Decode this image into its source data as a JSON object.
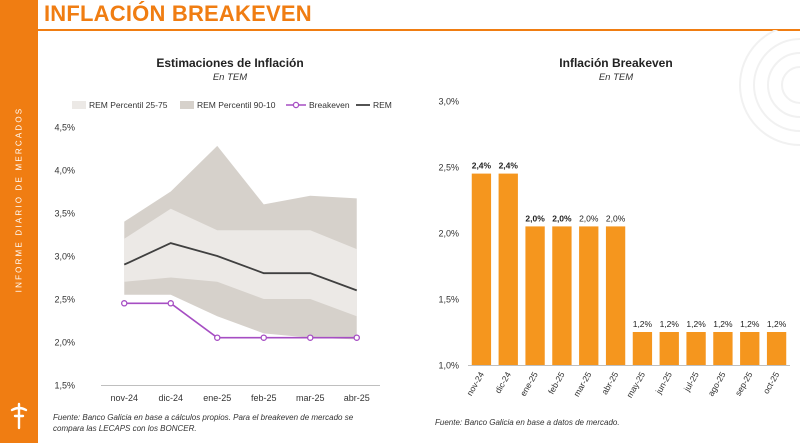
{
  "page": {
    "title": "INFLACIÓN BREAKEVEN",
    "sidebar_text": "INFORME DIARIO DE MERCADOS",
    "accent_color": "#f07d12",
    "logo_icon": "dagger-icon"
  },
  "chart_data": [
    {
      "type": "area",
      "title": "Estimaciones de Inflación",
      "subtitle": "En TEM",
      "categories": [
        "nov-24",
        "dic-24",
        "ene-25",
        "feb-25",
        "mar-25",
        "abr-25"
      ],
      "ylim": [
        1.5,
        4.5
      ],
      "yticks": [
        "1,5%",
        "2,0%",
        "2,5%",
        "3,0%",
        "3,5%",
        "4,0%",
        "4,5%"
      ],
      "ytick_values": [
        1.5,
        2.0,
        2.5,
        3.0,
        3.5,
        4.0,
        4.5
      ],
      "series": [
        {
          "name": "REM Percentil 90-10",
          "kind": "band",
          "color": "#d6d1cb",
          "upper": [
            3.4,
            3.75,
            4.28,
            3.6,
            3.7,
            3.67
          ],
          "lower": [
            2.55,
            2.55,
            2.3,
            2.1,
            2.05,
            2.03
          ]
        },
        {
          "name": "REM Percentil 25-75",
          "kind": "band",
          "color": "#ece9e6",
          "upper": [
            3.2,
            3.55,
            3.3,
            3.3,
            3.3,
            3.08
          ],
          "lower": [
            2.7,
            2.75,
            2.7,
            2.5,
            2.5,
            2.3
          ]
        },
        {
          "name": "Breakeven",
          "kind": "line",
          "color": "#a64ec3",
          "values": [
            2.45,
            2.45,
            2.05,
            2.05,
            2.05,
            2.05
          ]
        },
        {
          "name": "REM",
          "kind": "line",
          "color": "#404040",
          "values": [
            2.9,
            3.15,
            3.0,
            2.8,
            2.8,
            2.6
          ]
        }
      ],
      "legend": [
        "REM Percentil 25-75",
        "REM Percentil 90-10",
        "Breakeven",
        "REM"
      ],
      "source": "Fuente: Banco Galicia en base a cálculos propios. Para el breakeven de mercado se",
      "source_line2": "compara las LECAPS con los BONCER."
    },
    {
      "type": "bar",
      "title": "Inflación Breakeven",
      "subtitle": "En TEM",
      "categories": [
        "nov-24",
        "dic-24",
        "ene-25",
        "feb-25",
        "mar-25",
        "abr-25",
        "may-25",
        "jun-25",
        "jul-25",
        "ago-25",
        "sep-25",
        "oct-25"
      ],
      "values": [
        2.45,
        2.45,
        2.05,
        2.05,
        2.05,
        2.05,
        1.25,
        1.25,
        1.25,
        1.25,
        1.25,
        1.25
      ],
      "data_labels": [
        "2,4%",
        "2,4%",
        "2,0%",
        "2,0%",
        "2,0%",
        "2,0%",
        "1,2%",
        "1,2%",
        "1,2%",
        "1,2%",
        "1,2%",
        "1,2%"
      ],
      "label_bold": [
        true,
        true,
        true,
        true,
        false,
        false,
        false,
        false,
        false,
        false,
        false,
        false
      ],
      "ylim": [
        1.0,
        3.0
      ],
      "yticks": [
        "1,0%",
        "1,5%",
        "2,0%",
        "2,5%",
        "3,0%"
      ],
      "ytick_values": [
        1.0,
        1.5,
        2.0,
        2.5,
        3.0
      ],
      "color": "#f5961e",
      "source": "Fuente: Banco Galicia en base a datos de mercado."
    }
  ]
}
